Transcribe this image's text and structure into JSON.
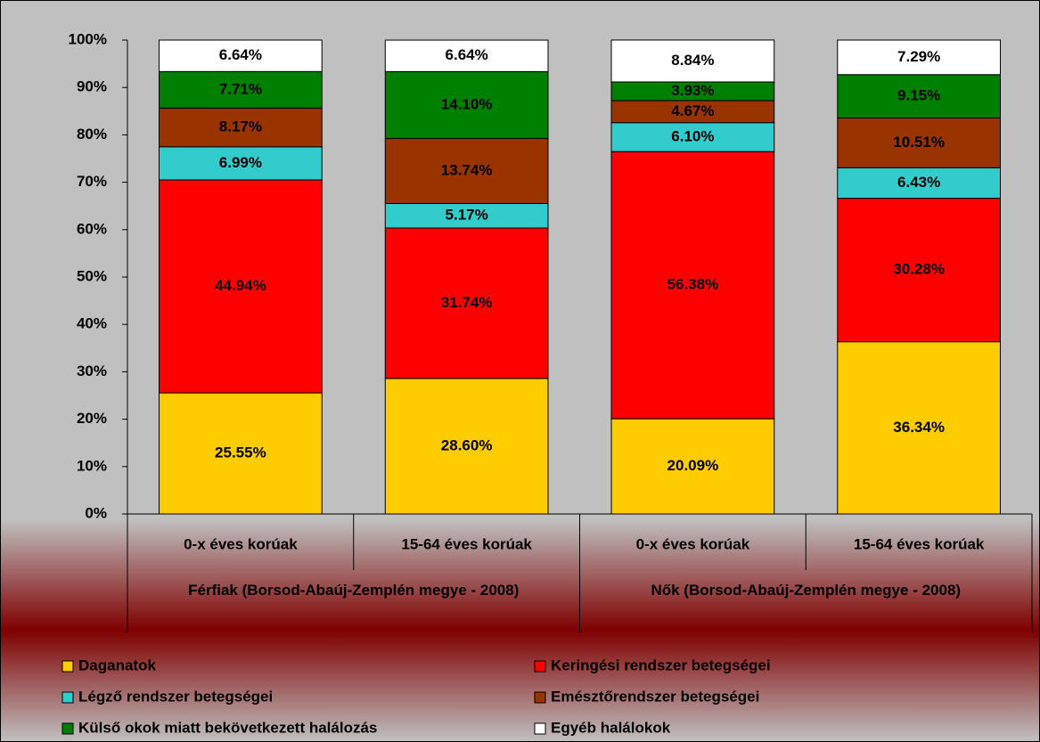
{
  "chart_data": {
    "type": "stacked_bar",
    "categories": [
      "0-x éves korúak",
      "15-64 éves korúak",
      "0-x éves korúak",
      "15-64 éves korúak"
    ],
    "groups": [
      "Férfiak (Borsod-Abaúj-Zemplén megye - 2008)",
      "Nők (Borsod-Abaúj-Zemplén megye - 2008)"
    ],
    "ylim": [
      0,
      100
    ],
    "yticks": [
      {
        "value": 0,
        "label": "0%"
      },
      {
        "value": 10,
        "label": "10%"
      },
      {
        "value": 20,
        "label": "20%"
      },
      {
        "value": 30,
        "label": "30%"
      },
      {
        "value": 40,
        "label": "40%"
      },
      {
        "value": 50,
        "label": "50%"
      },
      {
        "value": 60,
        "label": "60%"
      },
      {
        "value": 70,
        "label": "70%"
      },
      {
        "value": 80,
        "label": "80%"
      },
      {
        "value": 90,
        "label": "90%"
      },
      {
        "value": 100,
        "label": "100%"
      }
    ],
    "grid": false,
    "series": [
      {
        "name": "Daganatok",
        "color": "#ffcc00",
        "values": [
          25.55,
          28.6,
          20.09,
          36.34
        ],
        "value_labels": [
          "25.55%",
          "28.60%",
          "20.09%",
          "36.34%"
        ]
      },
      {
        "name": "Keringési rendszer betegségei",
        "color": "#ff0000",
        "values": [
          44.94,
          31.74,
          56.38,
          30.28
        ],
        "value_labels": [
          "44.94%",
          "31.74%",
          "56.38%",
          "30.28%"
        ]
      },
      {
        "name": "Légző rendszer betegségei",
        "color": "#33cccc",
        "values": [
          6.99,
          5.17,
          6.1,
          6.43
        ],
        "value_labels": [
          "6.99%",
          "5.17%",
          "6.10%",
          "6.43%"
        ]
      },
      {
        "name": "Emésztőrendszer betegségei",
        "color": "#993300",
        "values": [
          8.17,
          13.74,
          4.67,
          10.51
        ],
        "value_labels": [
          "8.17%",
          "13.74%",
          "4.67%",
          "10.51%"
        ]
      },
      {
        "name": "Külső okok miatt bekövetkezett halálozás",
        "color": "#008000",
        "values": [
          7.71,
          14.1,
          3.93,
          9.15
        ],
        "value_labels": [
          "7.71%",
          "14.10%",
          "3.93%",
          "9.15%"
        ]
      },
      {
        "name": "Egyéb halálokok",
        "color": "#ffffff",
        "values": [
          6.64,
          6.64,
          8.84,
          7.29
        ],
        "value_labels": [
          "6.64%",
          "6.64%",
          "8.84%",
          "7.29%"
        ]
      }
    ]
  }
}
